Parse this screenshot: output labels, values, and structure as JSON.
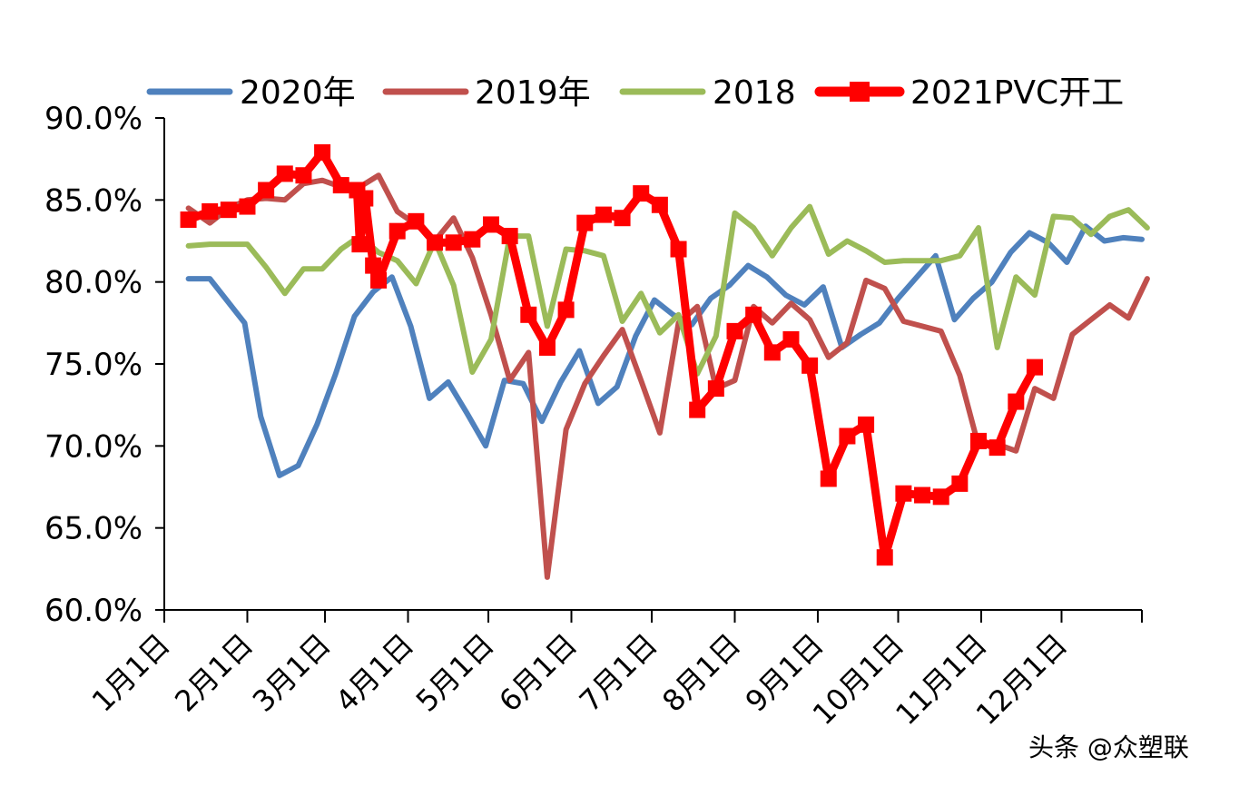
{
  "chart_data": {
    "type": "line",
    "title": "",
    "xlabel": "",
    "ylabel": "",
    "ylim": [
      60.0,
      90.0
    ],
    "y_ticks": [
      "90.0%",
      "85.0%",
      "80.0%",
      "75.0%",
      "70.0%",
      "65.0%",
      "60.0%"
    ],
    "x_range_days": [
      1,
      366
    ],
    "x_tick_labels": [
      {
        "label": "1月1日",
        "day": 1
      },
      {
        "label": "2月1日",
        "day": 32
      },
      {
        "label": "3月1日",
        "day": 61
      },
      {
        "label": "4月1日",
        "day": 92
      },
      {
        "label": "5月1日",
        "day": 122
      },
      {
        "label": "6月1日",
        "day": 153
      },
      {
        "label": "7月1日",
        "day": 183
      },
      {
        "label": "8月1日",
        "day": 214
      },
      {
        "label": "9月1日",
        "day": 245
      },
      {
        "label": "10月1日",
        "day": 275
      },
      {
        "label": "11月1日",
        "day": 306
      },
      {
        "label": "12月1日",
        "day": 336
      }
    ],
    "legend_position": "top",
    "series": [
      {
        "name": "2020年",
        "color": "#4f81bd",
        "marker": "none",
        "points": [
          [
            10,
            80.2
          ],
          [
            18,
            80.2
          ],
          [
            31,
            77.5
          ],
          [
            37,
            71.8
          ],
          [
            44,
            68.2
          ],
          [
            51,
            68.8
          ],
          [
            58,
            71.3
          ],
          [
            65,
            74.4
          ],
          [
            72,
            77.9
          ],
          [
            79,
            79.4
          ],
          [
            86,
            80.3
          ],
          [
            93,
            77.3
          ],
          [
            100,
            72.9
          ],
          [
            107,
            73.9
          ],
          [
            114,
            72.0
          ],
          [
            121,
            70.0
          ],
          [
            128,
            74.0
          ],
          [
            135,
            73.8
          ],
          [
            142,
            71.5
          ],
          [
            149,
            73.9
          ],
          [
            156,
            75.8
          ],
          [
            163,
            72.6
          ],
          [
            170,
            73.6
          ],
          [
            177,
            76.7
          ],
          [
            184,
            78.9
          ],
          [
            191,
            78.0
          ],
          [
            198,
            77.4
          ],
          [
            205,
            79.0
          ],
          [
            212,
            79.8
          ],
          [
            219,
            81.0
          ],
          [
            226,
            80.3
          ],
          [
            233,
            79.2
          ],
          [
            240,
            78.6
          ],
          [
            247,
            79.7
          ],
          [
            254,
            76.0
          ],
          [
            261,
            76.8
          ],
          [
            268,
            77.5
          ],
          [
            275,
            79.0
          ],
          [
            282,
            80.3
          ],
          [
            289,
            81.6
          ],
          [
            296,
            77.7
          ],
          [
            303,
            79.0
          ],
          [
            310,
            80.0
          ],
          [
            317,
            81.8
          ],
          [
            324,
            83.0
          ],
          [
            331,
            82.4
          ],
          [
            338,
            81.2
          ],
          [
            345,
            83.4
          ],
          [
            352,
            82.5
          ],
          [
            359,
            82.7
          ],
          [
            366,
            82.6
          ]
        ]
      },
      {
        "name": "2019年",
        "color": "#c0504d",
        "marker": "none",
        "points": [
          [
            10,
            84.5
          ],
          [
            18,
            83.6
          ],
          [
            25,
            84.5
          ],
          [
            32,
            85.0
          ],
          [
            39,
            85.1
          ],
          [
            46,
            85.0
          ],
          [
            53,
            86.0
          ],
          [
            60,
            86.2
          ],
          [
            67,
            85.8
          ],
          [
            74,
            85.8
          ],
          [
            81,
            86.5
          ],
          [
            88,
            84.3
          ],
          [
            95,
            83.5
          ],
          [
            102,
            82.5
          ],
          [
            109,
            83.9
          ],
          [
            116,
            81.5
          ],
          [
            123,
            78.0
          ],
          [
            130,
            74.0
          ],
          [
            137,
            75.7
          ],
          [
            144,
            62.0
          ],
          [
            151,
            71.0
          ],
          [
            158,
            73.8
          ],
          [
            165,
            75.5
          ],
          [
            172,
            77.1
          ],
          [
            179,
            74.0
          ],
          [
            186,
            70.8
          ],
          [
            193,
            77.5
          ],
          [
            200,
            78.5
          ],
          [
            207,
            73.5
          ],
          [
            214,
            74.0
          ],
          [
            221,
            78.5
          ],
          [
            228,
            77.5
          ],
          [
            235,
            78.7
          ],
          [
            242,
            77.7
          ],
          [
            249,
            75.4
          ],
          [
            256,
            76.3
          ],
          [
            263,
            80.1
          ],
          [
            270,
            79.6
          ],
          [
            277,
            77.6
          ],
          [
            284,
            77.3
          ],
          [
            291,
            77.0
          ],
          [
            298,
            74.3
          ],
          [
            305,
            70.0
          ],
          [
            312,
            70.1
          ],
          [
            319,
            69.7
          ],
          [
            326,
            73.5
          ],
          [
            333,
            72.9
          ],
          [
            340,
            76.8
          ],
          [
            347,
            77.7
          ],
          [
            354,
            78.6
          ],
          [
            361,
            77.8
          ],
          [
            368,
            80.2
          ]
        ]
      },
      {
        "name": "2018",
        "color": "#9bbb59",
        "marker": "none",
        "points": [
          [
            10,
            82.2
          ],
          [
            18,
            82.3
          ],
          [
            25,
            82.3
          ],
          [
            32,
            82.3
          ],
          [
            39,
            80.9
          ],
          [
            46,
            79.3
          ],
          [
            53,
            80.8
          ],
          [
            60,
            80.8
          ],
          [
            67,
            82.0
          ],
          [
            74,
            82.8
          ],
          [
            81,
            81.8
          ],
          [
            88,
            81.3
          ],
          [
            95,
            79.9
          ],
          [
            102,
            82.5
          ],
          [
            109,
            79.8
          ],
          [
            116,
            74.5
          ],
          [
            123,
            76.5
          ],
          [
            130,
            82.8
          ],
          [
            137,
            82.8
          ],
          [
            144,
            77.3
          ],
          [
            151,
            82.0
          ],
          [
            158,
            81.9
          ],
          [
            165,
            81.6
          ],
          [
            172,
            77.6
          ],
          [
            179,
            79.3
          ],
          [
            186,
            76.9
          ],
          [
            193,
            78.0
          ],
          [
            200,
            74.4
          ],
          [
            207,
            76.7
          ],
          [
            214,
            84.2
          ],
          [
            221,
            83.3
          ],
          [
            228,
            81.6
          ],
          [
            235,
            83.3
          ],
          [
            242,
            84.6
          ],
          [
            249,
            81.7
          ],
          [
            256,
            82.5
          ],
          [
            263,
            81.9
          ],
          [
            270,
            81.2
          ],
          [
            277,
            81.3
          ],
          [
            284,
            81.3
          ],
          [
            291,
            81.3
          ],
          [
            298,
            81.6
          ],
          [
            305,
            83.3
          ],
          [
            312,
            76.0
          ],
          [
            319,
            80.3
          ],
          [
            326,
            79.2
          ],
          [
            333,
            84.0
          ],
          [
            340,
            83.9
          ],
          [
            347,
            82.9
          ],
          [
            354,
            84.0
          ],
          [
            361,
            84.4
          ],
          [
            368,
            83.3
          ]
        ]
      },
      {
        "name": "2021PVC开工",
        "color": "#ff0000",
        "marker": "square",
        "points": [
          [
            10,
            83.8
          ],
          [
            18,
            84.3
          ],
          [
            25,
            84.4
          ],
          [
            32,
            84.6
          ],
          [
            39,
            85.6
          ],
          [
            46,
            86.6
          ],
          [
            53,
            86.5
          ],
          [
            60,
            87.9
          ],
          [
            67,
            85.9
          ],
          [
            73,
            85.6
          ],
          [
            74,
            82.3
          ],
          [
            76,
            85.1
          ],
          [
            79,
            81.0
          ],
          [
            81,
            80.1
          ],
          [
            88,
            83.1
          ],
          [
            95,
            83.7
          ],
          [
            102,
            82.4
          ],
          [
            109,
            82.4
          ],
          [
            116,
            82.6
          ],
          [
            123,
            83.5
          ],
          [
            130,
            82.8
          ],
          [
            137,
            78.0
          ],
          [
            144,
            76.0
          ],
          [
            151,
            78.3
          ],
          [
            158,
            83.6
          ],
          [
            165,
            84.1
          ],
          [
            172,
            83.9
          ],
          [
            179,
            85.4
          ],
          [
            186,
            84.7
          ],
          [
            193,
            82.0
          ],
          [
            200,
            72.2
          ],
          [
            207,
            73.5
          ],
          [
            214,
            77.0
          ],
          [
            221,
            78.0
          ],
          [
            228,
            75.7
          ],
          [
            235,
            76.5
          ],
          [
            242,
            74.9
          ],
          [
            249,
            68.0
          ],
          [
            256,
            70.6
          ],
          [
            263,
            71.3
          ],
          [
            270,
            63.2
          ],
          [
            277,
            67.1
          ],
          [
            284,
            67.0
          ],
          [
            291,
            66.9
          ],
          [
            298,
            67.7
          ],
          [
            305,
            70.3
          ],
          [
            312,
            69.9
          ],
          [
            319,
            72.7
          ],
          [
            326,
            74.8
          ]
        ]
      }
    ]
  },
  "watermark": {
    "text": "头条 @众塑联"
  }
}
